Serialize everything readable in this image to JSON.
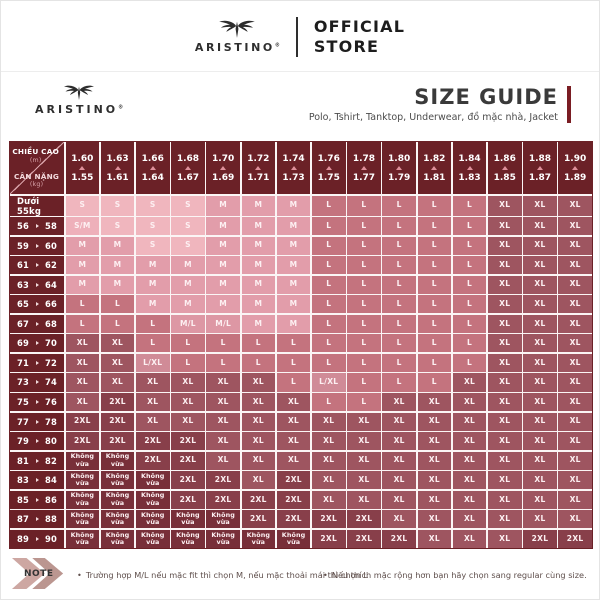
{
  "banner": {
    "brand": "ARISTINO",
    "registered": "®",
    "official": "OFFICIAL",
    "store": "STORE"
  },
  "header": {
    "brand": "ARISTINO",
    "registered": "®",
    "title": "SIZE GUIDE",
    "subtitle": "Polo, Tshirt, Tanktop, Underwear, đồ mặc nhà, Jacket"
  },
  "table": {
    "corner": {
      "top_label": "CHIỀU CAO",
      "top_unit": "(m)",
      "bottom_label": "CÂN NẶNG",
      "bottom_unit": "(kg)"
    },
    "columns": [
      [
        "1.60",
        "1.55"
      ],
      [
        "1.63",
        "1.61"
      ],
      [
        "1.66",
        "1.64"
      ],
      [
        "1.68",
        "1.67"
      ],
      [
        "1.70",
        "1.69"
      ],
      [
        "1.72",
        "1.71"
      ],
      [
        "1.74",
        "1.73"
      ],
      [
        "1.76",
        "1.75"
      ],
      [
        "1.78",
        "1.77"
      ],
      [
        "1.80",
        "1.79"
      ],
      [
        "1.82",
        "1.81"
      ],
      [
        "1.84",
        "1.83"
      ],
      [
        "1.86",
        "1.85"
      ],
      [
        "1.88",
        "1.87"
      ],
      [
        "1.90",
        "1.89"
      ]
    ],
    "rows": [
      {
        "label": "Dưới 55kg",
        "cells": [
          "S",
          "S",
          "S",
          "S",
          "M",
          "M",
          "M",
          "L",
          "L",
          "L",
          "L",
          "L",
          "XL",
          "XL",
          "XL"
        ]
      },
      {
        "from": "56",
        "to": "58",
        "cells": [
          "S/M",
          "S",
          "S",
          "S",
          "M",
          "M",
          "M",
          "L",
          "L",
          "L",
          "L",
          "L",
          "XL",
          "XL",
          "XL"
        ]
      },
      {
        "from": "59",
        "to": "60",
        "cells": [
          "M",
          "M",
          "S",
          "S",
          "M",
          "M",
          "M",
          "L",
          "L",
          "L",
          "L",
          "L",
          "XL",
          "XL",
          "XL"
        ]
      },
      {
        "from": "61",
        "to": "62",
        "cells": [
          "M",
          "M",
          "M",
          "M",
          "M",
          "M",
          "M",
          "L",
          "L",
          "L",
          "L",
          "L",
          "XL",
          "XL",
          "XL"
        ]
      },
      {
        "from": "63",
        "to": "64",
        "cells": [
          "M",
          "M",
          "M",
          "M",
          "M",
          "M",
          "M",
          "L",
          "L",
          "L",
          "L",
          "L",
          "XL",
          "XL",
          "XL"
        ]
      },
      {
        "from": "65",
        "to": "66",
        "cells": [
          "L",
          "L",
          "M",
          "M",
          "M",
          "M",
          "M",
          "L",
          "L",
          "L",
          "L",
          "L",
          "XL",
          "XL",
          "XL"
        ]
      },
      {
        "from": "67",
        "to": "68",
        "cells": [
          "L",
          "L",
          "L",
          "M/L",
          "M/L",
          "M",
          "M",
          "L",
          "L",
          "L",
          "L",
          "L",
          "XL",
          "XL",
          "XL"
        ]
      },
      {
        "from": "69",
        "to": "70",
        "cells": [
          "XL",
          "XL",
          "L",
          "L",
          "L",
          "L",
          "L",
          "L",
          "L",
          "L",
          "L",
          "L",
          "XL",
          "XL",
          "XL"
        ]
      },
      {
        "from": "71",
        "to": "72",
        "cells": [
          "XL",
          "XL",
          "L/XL",
          "L",
          "L",
          "L",
          "L",
          "L",
          "L",
          "L",
          "L",
          "L",
          "XL",
          "XL",
          "XL"
        ]
      },
      {
        "from": "73",
        "to": "74",
        "cells": [
          "XL",
          "XL",
          "XL",
          "XL",
          "XL",
          "XL",
          "L",
          "L/XL",
          "L",
          "L",
          "L",
          "XL",
          "XL",
          "XL",
          "XL"
        ]
      },
      {
        "from": "75",
        "to": "76",
        "cells": [
          "XL",
          "2XL",
          "XL",
          "XL",
          "XL",
          "XL",
          "XL",
          "L",
          "L",
          "XL",
          "XL",
          "XL",
          "XL",
          "XL",
          "XL"
        ]
      },
      {
        "from": "77",
        "to": "78",
        "cells": [
          "2XL",
          "2XL",
          "XL",
          "XL",
          "XL",
          "XL",
          "XL",
          "XL",
          "XL",
          "XL",
          "XL",
          "XL",
          "XL",
          "XL",
          "XL"
        ]
      },
      {
        "from": "79",
        "to": "80",
        "cells": [
          "2XL",
          "2XL",
          "2XL",
          "2XL",
          "XL",
          "XL",
          "XL",
          "XL",
          "XL",
          "XL",
          "XL",
          "XL",
          "XL",
          "XL",
          "XL"
        ]
      },
      {
        "from": "81",
        "to": "82",
        "cells": [
          "Không vừa",
          "Không vừa",
          "2XL",
          "2XL",
          "XL",
          "XL",
          "XL",
          "XL",
          "XL",
          "XL",
          "XL",
          "XL",
          "XL",
          "XL",
          "XL"
        ]
      },
      {
        "from": "83",
        "to": "84",
        "cells": [
          "Không vừa",
          "Không vừa",
          "Không vừa",
          "2XL",
          "2XL",
          "XL",
          "2XL",
          "XL",
          "XL",
          "XL",
          "XL",
          "XL",
          "XL",
          "XL",
          "XL"
        ]
      },
      {
        "from": "85",
        "to": "86",
        "cells": [
          "Không vừa",
          "Không vừa",
          "Không vừa",
          "2XL",
          "2XL",
          "2XL",
          "2XL",
          "XL",
          "XL",
          "XL",
          "XL",
          "XL",
          "XL",
          "XL",
          "XL"
        ]
      },
      {
        "from": "87",
        "to": "88",
        "cells": [
          "Không vừa",
          "Không vừa",
          "Không vừa",
          "Không vừa",
          "Không vừa",
          "2XL",
          "2XL",
          "2XL",
          "2XL",
          "XL",
          "XL",
          "XL",
          "XL",
          "XL",
          "XL"
        ]
      },
      {
        "from": "89",
        "to": "90",
        "cells": [
          "Không vừa",
          "Không vừa",
          "Không vừa",
          "Không vừa",
          "Không vừa",
          "Không vừa",
          "Không vừa",
          "2XL",
          "2XL",
          "2XL",
          "XL",
          "XL",
          "XL",
          "2XL",
          "2XL"
        ]
      }
    ]
  },
  "size_colors": {
    "S": "#f0b6be",
    "S/M": "#eeb0ba",
    "M": "#e29daa",
    "M/L": "#dd97a4",
    "L": "#c4737e",
    "L/XL": "#d08b97",
    "XL": "#9e5560",
    "2XL": "#883f4a",
    "Không vừa": "#782f39"
  },
  "colors": {
    "header_bg": "#6b2127",
    "gridline": "#fbf5f5",
    "accent_bar": "#7a1d23",
    "chevron_light": "#cda7a2",
    "chevron_dark": "#bb9690"
  },
  "note": {
    "label": "NOTE",
    "marker": "•",
    "bullets": [
      "Trường hợp M/L nếu mặc fit thì chọn M, nếu mặc thoải mái thì chọn L",
      "Nếu thích mặc rộng hơn bạn hãy chọn sang regular cùng size."
    ]
  }
}
